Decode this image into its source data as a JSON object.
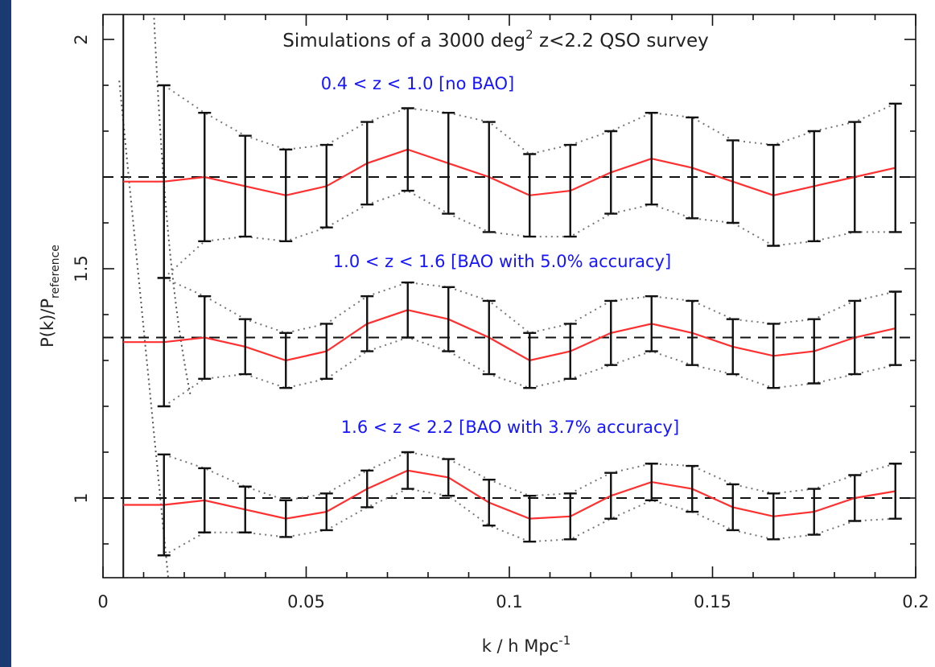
{
  "chart_data": {
    "type": "line",
    "title": "Simulations of a 3000 deg² z<2.2 QSO survey",
    "title_parts": {
      "pre": "Simulations of a 3000 deg",
      "sup": "2",
      "post": " z<2.2 QSO survey"
    },
    "xlabel": "k / h Mpc",
    "xlabel_sup": "-1",
    "ylabel": "P(k)/P",
    "ylabel_sub": "reference",
    "xlim": [
      0,
      0.2
    ],
    "ylim": [
      0.825,
      2.05
    ],
    "x_ticks": [
      0,
      0.05,
      0.1,
      0.15,
      0.2
    ],
    "x_tick_labels": [
      "0",
      "0.05",
      "0.1",
      "0.15",
      "0.2"
    ],
    "y_ticks": [
      1,
      1.5,
      2
    ],
    "y_tick_labels": [
      "1",
      "1.5",
      "2"
    ],
    "reference_lines": [
      1.0,
      1.35,
      1.7
    ],
    "x": [
      0.015,
      0.025,
      0.035,
      0.045,
      0.055,
      0.065,
      0.075,
      0.085,
      0.095,
      0.105,
      0.115,
      0.125,
      0.135,
      0.145,
      0.155,
      0.165,
      0.175,
      0.185,
      0.195
    ],
    "series": [
      {
        "label": "0.4 < z < 1.0 [no BAO]",
        "center": [
          1.69,
          1.7,
          1.68,
          1.66,
          1.68,
          1.73,
          1.76,
          1.73,
          1.7,
          1.66,
          1.67,
          1.71,
          1.74,
          1.72,
          1.69,
          1.66,
          1.68,
          1.7,
          1.72
        ],
        "errors": [
          0.21,
          0.14,
          0.11,
          0.1,
          0.09,
          0.09,
          0.09,
          0.11,
          0.12,
          0.09,
          0.1,
          0.09,
          0.1,
          0.11,
          0.09,
          0.11,
          0.12,
          0.12,
          0.14
        ],
        "extra_start": [
          0.005,
          1.69
        ]
      },
      {
        "label": "1.0 < z < 1.6 [BAO with 5.0% accuracy]",
        "center": [
          1.34,
          1.35,
          1.33,
          1.3,
          1.32,
          1.38,
          1.41,
          1.39,
          1.35,
          1.3,
          1.32,
          1.36,
          1.38,
          1.36,
          1.33,
          1.31,
          1.32,
          1.35,
          1.37
        ],
        "errors": [
          0.14,
          0.09,
          0.06,
          0.06,
          0.06,
          0.06,
          0.06,
          0.07,
          0.08,
          0.06,
          0.06,
          0.07,
          0.06,
          0.07,
          0.06,
          0.07,
          0.07,
          0.08,
          0.08
        ],
        "extra_start": [
          0.005,
          1.34
        ]
      },
      {
        "label": "1.6 < z < 2.2 [BAO with 3.7% accuracy]",
        "center": [
          0.985,
          0.995,
          0.975,
          0.955,
          0.97,
          1.02,
          1.06,
          1.045,
          0.99,
          0.955,
          0.96,
          1.005,
          1.035,
          1.02,
          0.98,
          0.96,
          0.97,
          1.0,
          1.015
        ],
        "errors": [
          0.11,
          0.07,
          0.05,
          0.04,
          0.04,
          0.04,
          0.04,
          0.04,
          0.05,
          0.05,
          0.05,
          0.05,
          0.04,
          0.05,
          0.05,
          0.05,
          0.05,
          0.05,
          0.06
        ],
        "extra_start": [
          0.005,
          0.985
        ]
      }
    ],
    "colors": {
      "model_line": "#ff3030",
      "error_bar": "#111111",
      "annotation": "#1515ff",
      "border": "#1c3a72"
    }
  }
}
